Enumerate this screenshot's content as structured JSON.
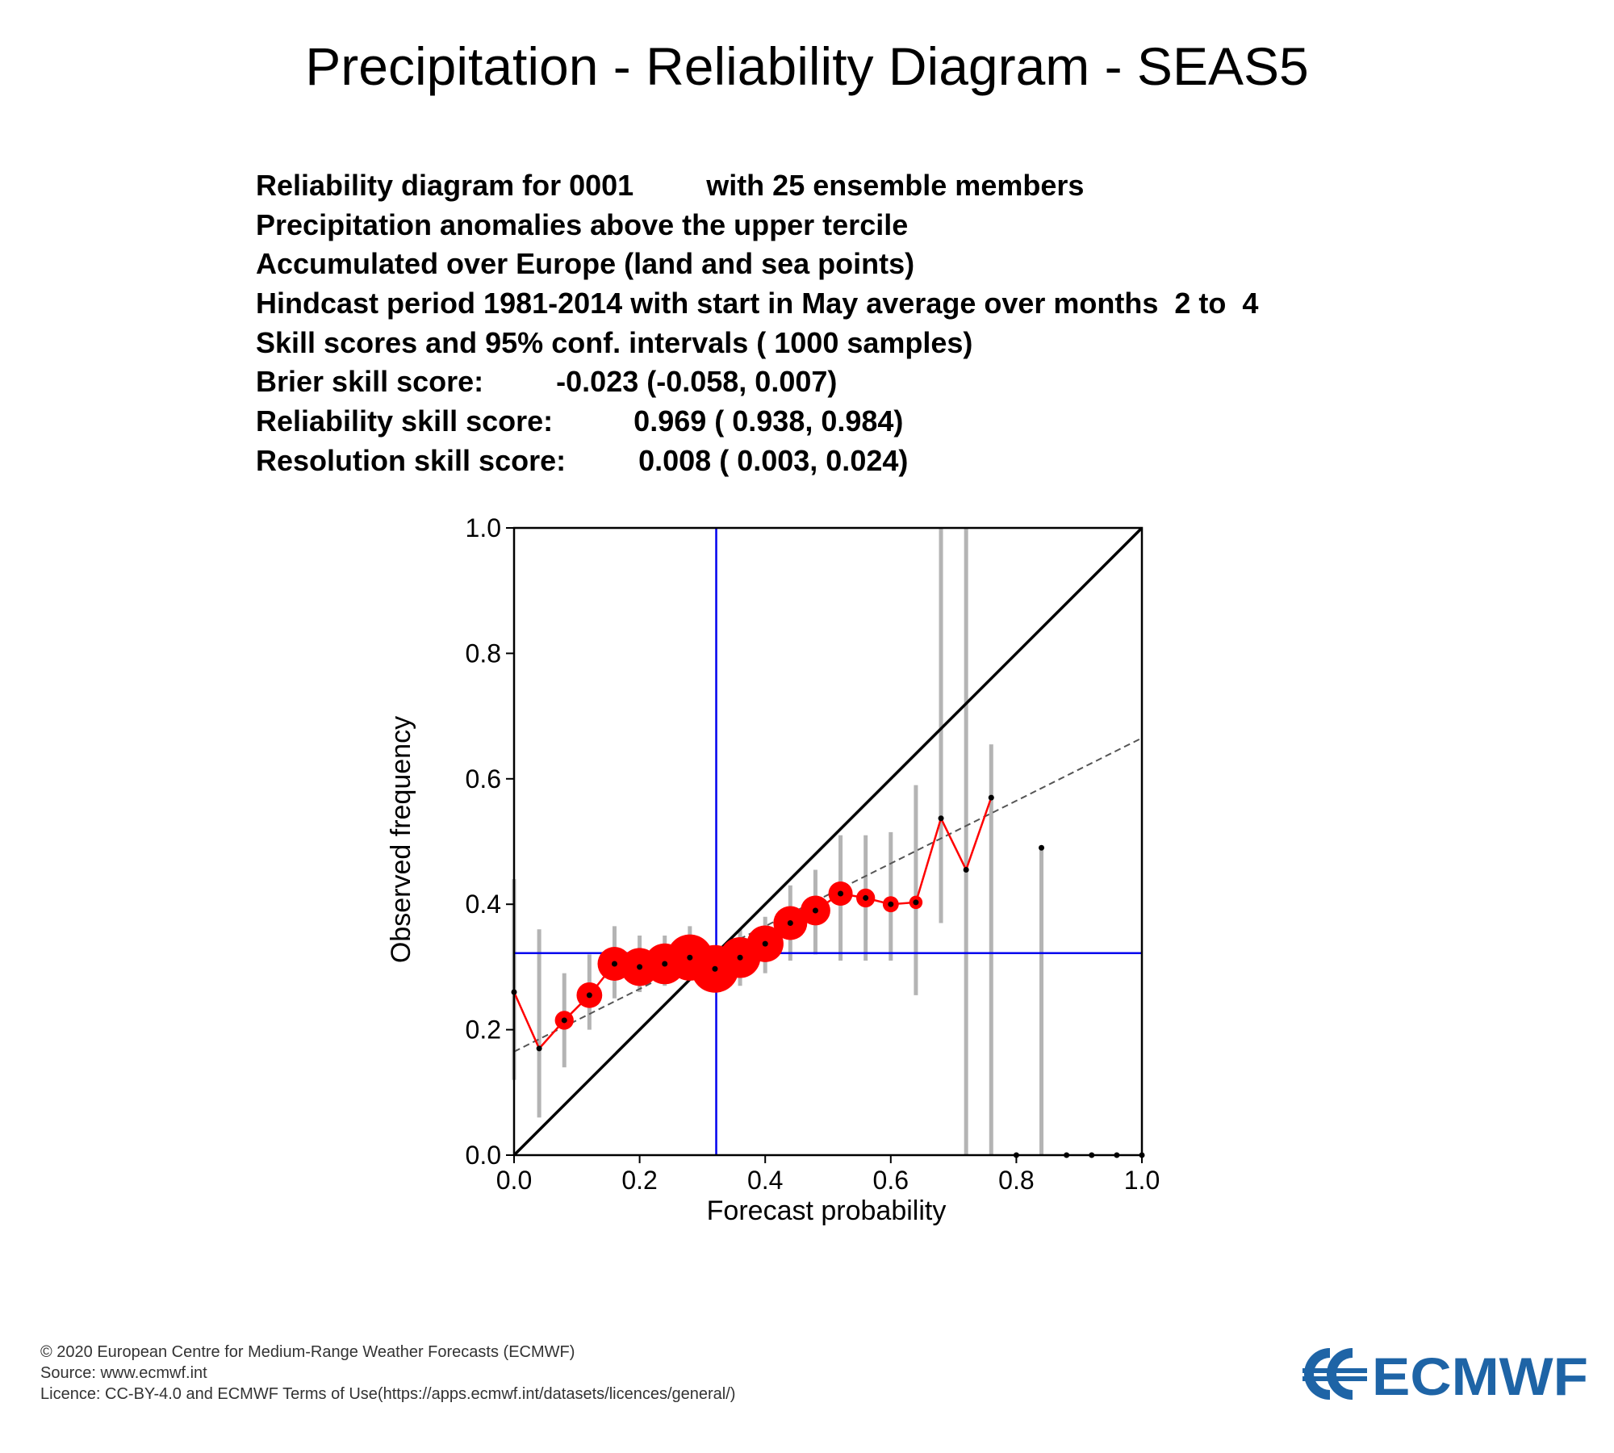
{
  "title": "Precipitation - Reliability Diagram - SEAS5",
  "info_lines": [
    "Reliability diagram for 0001         with 25 ensemble members",
    "Precipitation anomalies above the upper tercile",
    "Accumulated over Europe (land and sea points)",
    "Hindcast period 1981-2014 with start in May average over months  2 to  4",
    "Skill scores and 95% conf. intervals ( 1000 samples)",
    "Brier skill score:         -0.023 (-0.058, 0.007)",
    "Reliability skill score:          0.969 ( 0.938, 0.984)",
    "Resolution skill score:         0.008 ( 0.003, 0.024)"
  ],
  "footer": {
    "copyright": "© 2020 European Centre for Medium-Range Weather Forecasts (ECMWF)",
    "source": "Source: www.ecmwf.int",
    "licence": "Licence: CC-BY-4.0 and ECMWF Terms of Use(https://apps.ecmwf.int/datasets/licences/general/)"
  },
  "logo_text": "ECMWF",
  "colors": {
    "reliability_line": "#ff0000",
    "climatology_lines": "#0000ee",
    "confidence_bars": "#b4b4b4",
    "logo": "#1e64a6"
  },
  "chart_data": {
    "type": "scatter",
    "title": "",
    "xlabel": "Forecast probability",
    "ylabel": "Observed frequency",
    "xlim": [
      0,
      1
    ],
    "ylim": [
      0,
      1
    ],
    "x_ticks": [
      "0.0",
      "0.2",
      "0.4",
      "0.6",
      "0.8",
      "1.0"
    ],
    "y_ticks": [
      "0.0",
      "0.2",
      "0.4",
      "0.6",
      "0.8",
      "1.0"
    ],
    "climatology": 0.322,
    "diagonal": [
      [
        0,
        0
      ],
      [
        1,
        1
      ]
    ],
    "fitted_line": [
      [
        0,
        0.165
      ],
      [
        1,
        0.665
      ]
    ],
    "points": [
      {
        "x": 0.0,
        "y": 0.26,
        "size": 0,
        "ci": [
          0.12,
          0.44
        ]
      },
      {
        "x": 0.04,
        "y": 0.17,
        "size": 0,
        "ci": [
          0.06,
          0.36
        ]
      },
      {
        "x": 0.08,
        "y": 0.215,
        "size": 0.9,
        "ci": [
          0.14,
          0.29
        ]
      },
      {
        "x": 0.12,
        "y": 0.255,
        "size": 1.4,
        "ci": [
          0.2,
          0.32
        ]
      },
      {
        "x": 0.16,
        "y": 0.305,
        "size": 2.0,
        "ci": [
          0.25,
          0.365
        ]
      },
      {
        "x": 0.2,
        "y": 0.3,
        "size": 2.3,
        "ci": [
          0.26,
          0.35
        ]
      },
      {
        "x": 0.24,
        "y": 0.305,
        "size": 2.5,
        "ci": [
          0.27,
          0.35
        ]
      },
      {
        "x": 0.28,
        "y": 0.315,
        "size": 2.9,
        "ci": [
          0.29,
          0.365
        ]
      },
      {
        "x": 0.32,
        "y": 0.297,
        "size": 3.0,
        "ci": [
          0.27,
          0.32
        ]
      },
      {
        "x": 0.36,
        "y": 0.315,
        "size": 2.5,
        "ci": [
          0.27,
          0.36
        ]
      },
      {
        "x": 0.4,
        "y": 0.337,
        "size": 2.2,
        "ci": [
          0.29,
          0.38
        ]
      },
      {
        "x": 0.44,
        "y": 0.37,
        "size": 2.0,
        "ci": [
          0.31,
          0.43
        ]
      },
      {
        "x": 0.48,
        "y": 0.39,
        "size": 1.7,
        "ci": [
          0.32,
          0.455
        ]
      },
      {
        "x": 0.52,
        "y": 0.417,
        "size": 1.3,
        "ci": [
          0.31,
          0.51
        ]
      },
      {
        "x": 0.56,
        "y": 0.41,
        "size": 0.9,
        "ci": [
          0.31,
          0.51
        ]
      },
      {
        "x": 0.6,
        "y": 0.4,
        "size": 0.7,
        "ci": [
          0.31,
          0.515
        ]
      },
      {
        "x": 0.64,
        "y": 0.403,
        "size": 0.5,
        "ci": [
          0.255,
          0.59
        ]
      },
      {
        "x": 0.68,
        "y": 0.537,
        "size": 0,
        "ci": [
          0.37,
          1.0
        ]
      },
      {
        "x": 0.72,
        "y": 0.455,
        "size": 0,
        "ci": [
          0.0,
          1.0
        ]
      },
      {
        "x": 0.76,
        "y": 0.57,
        "size": 0,
        "ci": [
          0.0,
          0.655
        ]
      },
      {
        "x": 0.8,
        "y": 0.0,
        "size": 0,
        "ci": null
      },
      {
        "x": 0.84,
        "y": 0.49,
        "size": 0,
        "ci": [
          0.0,
          0.49
        ]
      },
      {
        "x": 0.88,
        "y": 0.0,
        "size": 0,
        "ci": null
      },
      {
        "x": 0.92,
        "y": 0.0,
        "size": 0,
        "ci": null
      },
      {
        "x": 0.96,
        "y": 0.0,
        "size": 0,
        "ci": null
      },
      {
        "x": 1.0,
        "y": 0.0,
        "size": 0,
        "ci": null
      }
    ],
    "red_line_x_max": 0.76
  }
}
